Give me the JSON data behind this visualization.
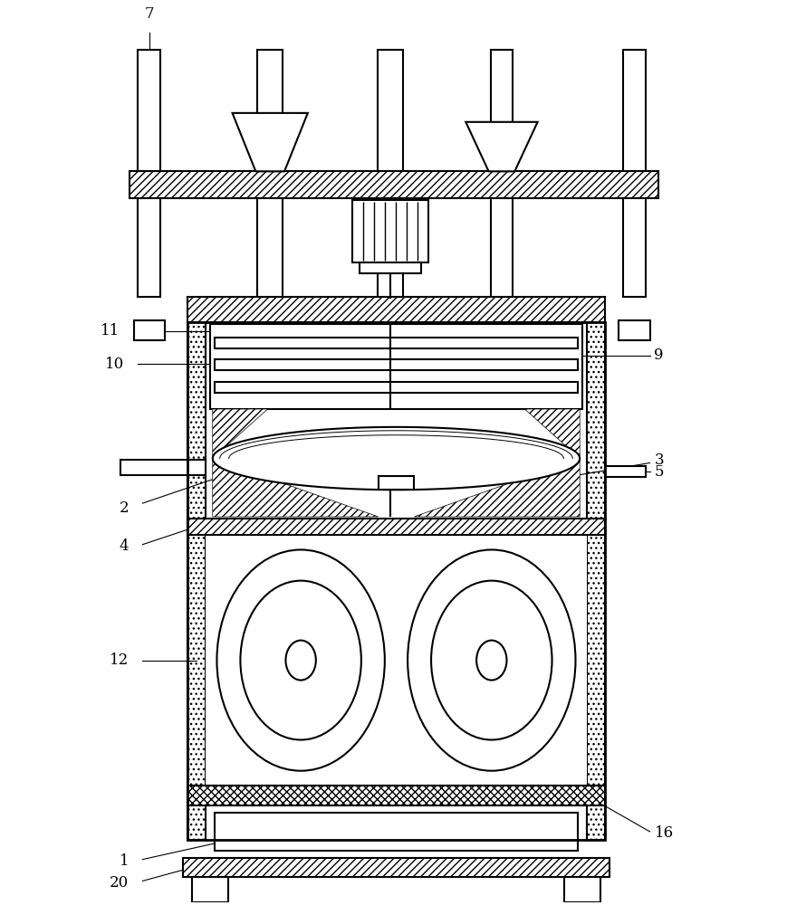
{
  "line_color": "#000000",
  "bg_color": "#ffffff",
  "lw": 1.5,
  "fig_width": 8.69,
  "fig_height": 10.0,
  "label_fontsize": 12
}
